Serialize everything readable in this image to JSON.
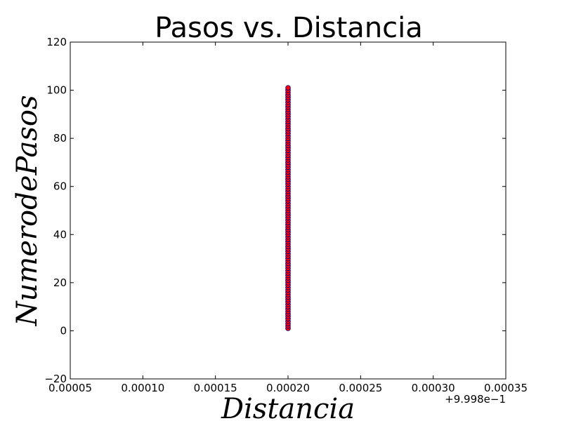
{
  "chart_data": {
    "type": "scatter",
    "title": "Pasos vs. Distancia",
    "xlabel": "Distancia",
    "ylabel": "Numero de Pasos",
    "ylabel_display": "NumerodePasos",
    "x_offset_label": "+9.998e−1",
    "xlim": [
      5e-05,
      0.00035
    ],
    "ylim": [
      -20,
      120
    ],
    "x_ticks": [
      5e-05,
      0.0001,
      0.00015,
      0.0002,
      0.00025,
      0.0003,
      0.00035
    ],
    "x_tick_labels": [
      "0.00005",
      "0.00010",
      "0.00015",
      "0.00020",
      "0.00025",
      "0.00030",
      "0.00035"
    ],
    "y_ticks": [
      -20,
      0,
      20,
      40,
      60,
      80,
      100,
      120
    ],
    "y_tick_labels": [
      "−20",
      "0",
      "20",
      "40",
      "60",
      "80",
      "100",
      "120"
    ],
    "grid": false,
    "series": [
      {
        "x_constant": 0.0002,
        "y_start": 1,
        "y_end": 101,
        "y_step": 1,
        "marker_face": "#ff0000",
        "marker_edge": "#000080"
      }
    ]
  }
}
